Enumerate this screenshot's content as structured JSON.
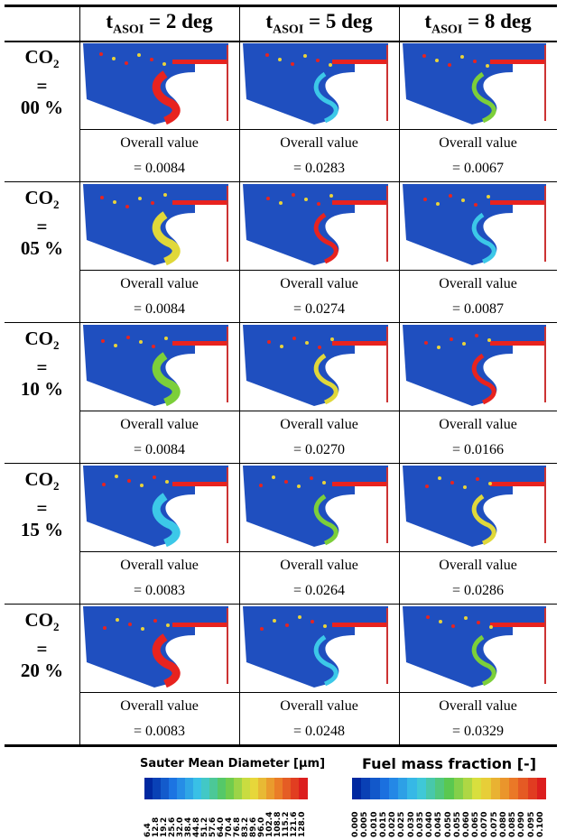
{
  "header": [
    {
      "main": "t",
      "sub": "ASOI",
      "rest": "= 2 deg"
    },
    {
      "main": "t",
      "sub": "ASOI",
      "rest": "= 5 deg"
    },
    {
      "main": "t",
      "sub": "ASOI",
      "rest": "= 8 deg"
    }
  ],
  "rows": [
    {
      "label": {
        "main": "CO",
        "sub": "2",
        "eq": "=",
        "pct": "00 %"
      },
      "cells": [
        {
          "line1": "Overall value",
          "line2": "= 0.0084"
        },
        {
          "line1": "Overall value",
          "line2": "= 0.0283"
        },
        {
          "line1": "Overall value",
          "line2": "= 0.0067"
        }
      ]
    },
    {
      "label": {
        "main": "CO",
        "sub": "2",
        "eq": "=",
        "pct": "05 %"
      },
      "cells": [
        {
          "line1": "Overall value",
          "line2": "= 0.0084"
        },
        {
          "line1": "Overall value",
          "line2": "= 0.0274"
        },
        {
          "line1": "Overall value",
          "line2": "= 0.0087"
        }
      ]
    },
    {
      "label": {
        "main": "CO",
        "sub": "2",
        "eq": "=",
        "pct": "10 %"
      },
      "cells": [
        {
          "line1": "Overall value",
          "line2": "= 0.0084"
        },
        {
          "line1": "Overall value",
          "line2": "= 0.0270"
        },
        {
          "line1": "Overall value",
          "line2": "= 0.0166"
        }
      ]
    },
    {
      "label": {
        "main": "CO",
        "sub": "2",
        "eq": "=",
        "pct": "15 %"
      },
      "cells": [
        {
          "line1": "Overall value",
          "line2": "= 0.0083"
        },
        {
          "line1": "Overall value",
          "line2": "= 0.0264"
        },
        {
          "line1": "Overall value",
          "line2": "= 0.0286"
        }
      ]
    },
    {
      "label": {
        "main": "CO",
        "sub": "2",
        "eq": "=",
        "pct": "20 %"
      },
      "cells": [
        {
          "line1": "Overall value",
          "line2": "= 0.0083"
        },
        {
          "line1": "Overall value",
          "line2": "= 0.0248"
        },
        {
          "line1": "Overall value",
          "line2": "= 0.0329"
        }
      ]
    }
  ],
  "legends": [
    {
      "title": "Sauter Mean Diameter [μm]",
      "labels": [
        "6.4",
        "12.8",
        "19.2",
        "25.6",
        "32.0",
        "38.4",
        "44.8",
        "51.2",
        "57.6",
        "64.0",
        "70.4",
        "76.8",
        "83.2",
        "89.6",
        "96.0",
        "102.4",
        "108.8",
        "115.2",
        "121.6",
        "128.0"
      ]
    },
    {
      "title": "Fuel mass fraction [-]",
      "labels": [
        "0.000",
        "0.005",
        "0.010",
        "0.015",
        "0.020",
        "0.025",
        "0.030",
        "0.035",
        "0.040",
        "0.045",
        "0.050",
        "0.055",
        "0.060",
        "0.065",
        "0.070",
        "0.075",
        "0.080",
        "0.085",
        "0.090",
        "0.095",
        "0.100"
      ]
    }
  ]
}
